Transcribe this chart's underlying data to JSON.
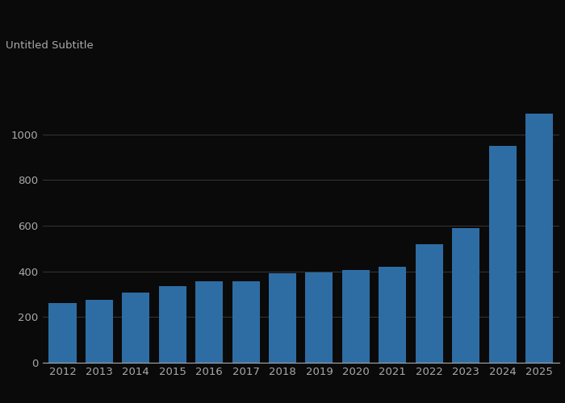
{
  "years": [
    2012,
    2013,
    2014,
    2015,
    2016,
    2017,
    2018,
    2019,
    2020,
    2021,
    2022,
    2023,
    2024,
    2025
  ],
  "values": [
    262,
    275,
    308,
    335,
    355,
    357,
    392,
    397,
    406,
    421,
    520,
    590,
    950,
    1090
  ],
  "bar_color": "#2e6da4",
  "background_color": "#0a0a0a",
  "text_color": "#aaaaaa",
  "grid_color": "#ffffff",
  "subtitle": "Untitled Subtitle",
  "legend_color": "#2e6da4",
  "ylim": [
    0,
    1200
  ],
  "yticks": [
    0,
    200,
    400,
    600,
    800,
    1000
  ],
  "subtitle_fontsize": 9.5,
  "tick_fontsize": 9.5
}
